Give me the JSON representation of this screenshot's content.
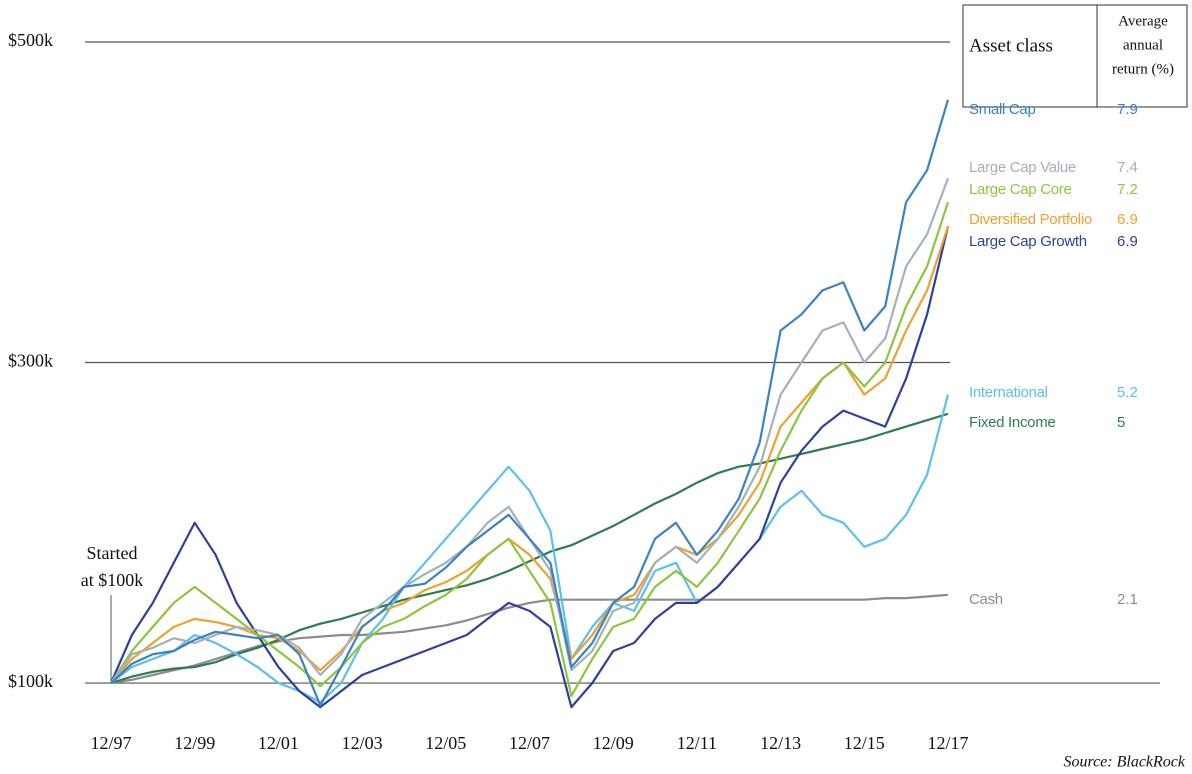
{
  "chart_data": {
    "type": "line",
    "categories": [
      "12/97",
      null,
      null,
      null,
      "12/99",
      null,
      null,
      null,
      "12/01",
      null,
      null,
      null,
      "12/03",
      null,
      null,
      null,
      "12/05",
      null,
      null,
      null,
      "12/07",
      null,
      null,
      null,
      "12/09",
      null,
      null,
      null,
      "12/11",
      null,
      null,
      null,
      "12/13",
      null,
      null,
      null,
      "12/15",
      null,
      null,
      null,
      "12/17"
    ],
    "ylim": [
      77,
      526
    ],
    "yticks": [
      {
        "value": 100,
        "label": "$100k"
      },
      {
        "value": 300,
        "label": "$300k"
      },
      {
        "value": 500,
        "label": "$500k"
      }
    ],
    "grid": true,
    "annotation": [
      "Started",
      "at $100k"
    ],
    "source": "Source: BlackRock",
    "legend_header": {
      "name": "Asset class",
      "return": [
        "Average",
        "annual",
        "return (%)"
      ]
    },
    "series": [
      {
        "name": "Cash",
        "color": "#8c8c8c",
        "return": 2.1,
        "values": [
          100,
          102,
          105,
          108,
          111,
          115,
          119,
          123,
          126,
          128,
          129,
          130,
          130,
          131,
          132,
          134,
          136,
          139,
          143,
          147,
          150,
          152,
          152,
          152,
          152,
          152,
          152,
          152,
          152,
          152,
          152,
          152,
          152,
          152,
          152,
          152,
          152,
          153,
          153,
          154,
          155
        ]
      },
      {
        "name": "Fixed Income",
        "color": "#2e7d4f",
        "return": 5.0,
        "values": [
          100,
          104,
          107,
          109,
          110,
          113,
          118,
          122,
          127,
          133,
          137,
          140,
          144,
          148,
          152,
          155,
          158,
          161,
          165,
          170,
          176,
          182,
          186,
          192,
          198,
          205,
          212,
          218,
          225,
          231,
          235,
          237,
          240,
          243,
          246,
          249,
          252,
          256,
          260,
          264,
          268
        ]
      },
      {
        "name": "International",
        "color": "#5bc0eb",
        "return": 5.2,
        "values": [
          100,
          110,
          115,
          120,
          130,
          125,
          118,
          110,
          100,
          95,
          88,
          100,
          125,
          140,
          160,
          175,
          190,
          205,
          220,
          235,
          220,
          195,
          115,
          135,
          150,
          145,
          170,
          175,
          150,
          160,
          175,
          190,
          210,
          220,
          205,
          200,
          185,
          190,
          205,
          230,
          280
        ]
      },
      {
        "name": "Large Cap Growth",
        "color": "#2e3f9e",
        "return": 6.9,
        "values": [
          100,
          130,
          150,
          175,
          200,
          180,
          150,
          130,
          110,
          95,
          85,
          95,
          105,
          110,
          115,
          120,
          125,
          130,
          140,
          150,
          145,
          135,
          85,
          100,
          120,
          125,
          140,
          150,
          150,
          160,
          175,
          190,
          225,
          245,
          260,
          270,
          265,
          260,
          290,
          330,
          385
        ]
      },
      {
        "name": "Diversified Portfolio",
        "color": "#f0a030",
        "return": 6.9,
        "values": [
          100,
          115,
          125,
          135,
          140,
          138,
          135,
          130,
          128,
          120,
          108,
          120,
          135,
          145,
          150,
          158,
          163,
          170,
          180,
          190,
          180,
          165,
          115,
          130,
          150,
          155,
          175,
          185,
          180,
          190,
          205,
          225,
          260,
          275,
          290,
          300,
          280,
          290,
          320,
          345,
          385
        ]
      },
      {
        "name": "Large Cap Core",
        "color": "#8cc63f",
        "return": 7.2,
        "values": [
          100,
          120,
          135,
          150,
          160,
          150,
          140,
          130,
          120,
          110,
          98,
          110,
          125,
          135,
          140,
          148,
          155,
          165,
          180,
          190,
          170,
          150,
          92,
          115,
          135,
          140,
          160,
          170,
          160,
          175,
          195,
          215,
          245,
          270,
          290,
          300,
          285,
          300,
          335,
          360,
          400
        ]
      },
      {
        "name": "Large Cap Value",
        "color": "#a3b2b8",
        "return": 7.4,
        "values": [
          100,
          118,
          122,
          128,
          125,
          130,
          135,
          133,
          130,
          122,
          105,
          118,
          140,
          150,
          160,
          168,
          175,
          185,
          200,
          210,
          190,
          170,
          108,
          120,
          145,
          150,
          175,
          185,
          175,
          190,
          210,
          235,
          280,
          300,
          320,
          325,
          300,
          315,
          360,
          380,
          415
        ]
      },
      {
        "name": "Small Cap",
        "color": "#3b82c4",
        "return": 7.9,
        "values": [
          100,
          112,
          118,
          120,
          127,
          132,
          130,
          128,
          130,
          118,
          86,
          110,
          135,
          145,
          160,
          162,
          172,
          185,
          195,
          205,
          190,
          175,
          110,
          125,
          150,
          160,
          190,
          200,
          180,
          195,
          215,
          250,
          320,
          330,
          345,
          350,
          320,
          335,
          400,
          420,
          464
        ]
      }
    ]
  }
}
